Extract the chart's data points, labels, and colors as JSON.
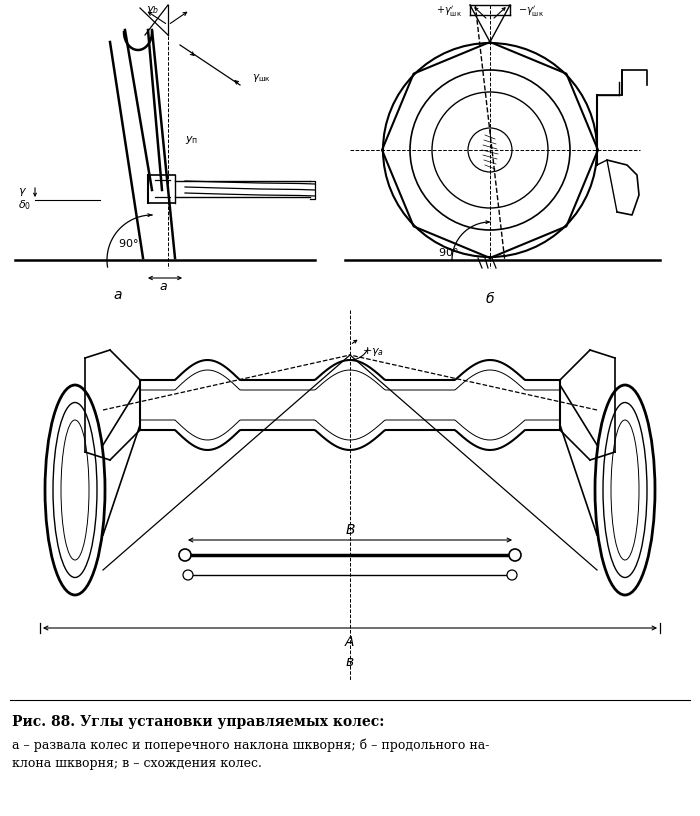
{
  "bg_color": "#ffffff",
  "line_color": "#000000",
  "fig_width": 7.0,
  "fig_height": 8.16,
  "caption_title": "Рис. 88. Углы установки управляемых колес:",
  "caption_line1": "а – развала колес и поперечного наклона шкворня; б – продольного на-",
  "caption_line2": "клона шкворня; в – схождения колес."
}
